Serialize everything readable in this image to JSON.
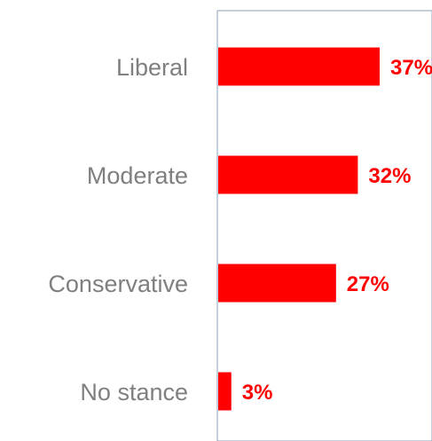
{
  "chart_data": {
    "type": "bar",
    "orientation": "horizontal",
    "categories": [
      "Liberal",
      "Moderate",
      "Conservative",
      "No stance"
    ],
    "values": [
      37,
      32,
      27,
      3
    ],
    "value_labels": [
      "37%",
      "32%",
      "27%",
      "3%"
    ],
    "unit": "%",
    "xlim": [
      0,
      40
    ],
    "title": "",
    "xlabel": "",
    "ylabel": "",
    "grid": false,
    "legend": "none",
    "colors": {
      "bar": "#ff0000",
      "value_label": "#ff0000",
      "category_label": "#7f7f7f",
      "axis": "#8ea0b8"
    }
  }
}
